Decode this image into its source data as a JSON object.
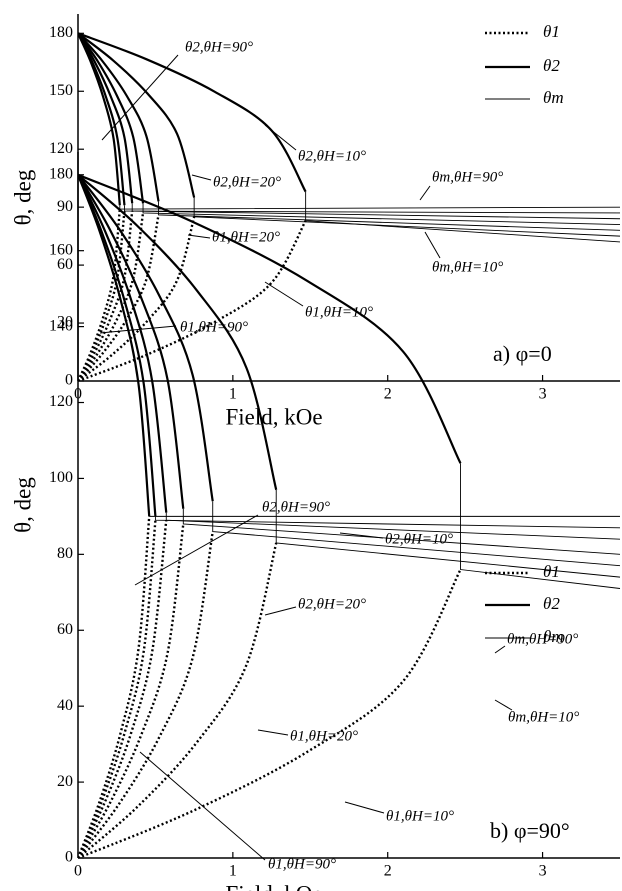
{
  "chart_data": [
    {
      "type": "line",
      "panel_label": "a) φ=0",
      "xlabel": "Field, kOe",
      "ylabel": "θ, deg",
      "xlim": [
        0,
        3.5
      ],
      "xticks": [
        0,
        1,
        2,
        3
      ],
      "ylim": [
        0,
        190
      ],
      "yticks": [
        0,
        30,
        60,
        90,
        120,
        150,
        180
      ],
      "legend": "upper right",
      "series": [
        {
          "name": "θ1",
          "color": "#000000",
          "style": "dotted",
          "curves": [
            {
              "x": [
                0,
                0.441,
                0.882,
                1.25,
                1.47
              ],
              "values": [
                0,
                13.5,
                30.5,
                50.9,
                83
              ]
            },
            {
              "x": [
                0,
                0.225,
                0.45,
                0.64,
                0.75
              ],
              "values": [
                0,
                13.9,
                31.3,
                52.1,
                85
              ]
            },
            {
              "x": [
                0,
                0.156,
                0.312,
                0.442,
                0.52
              ],
              "values": [
                0,
                14,
                31.6,
                52.7,
                86
              ]
            },
            {
              "x": [
                0,
                0.126,
                0.252,
                0.357,
                0.42
              ],
              "values": [
                0,
                14.2,
                32,
                53.3,
                87
              ]
            },
            {
              "x": [
                0,
                0.105,
                0.21,
                0.3,
                0.35
              ],
              "values": [
                0,
                14.3,
                32.4,
                53.9,
                88
              ]
            },
            {
              "x": [
                0,
                0.09,
                0.18,
                0.255,
                0.3
              ],
              "values": [
                0,
                14.3,
                32.4,
                53.9,
                88
              ]
            },
            {
              "x": [
                0,
                0.081,
                0.162,
                0.23,
                0.27
              ],
              "values": [
                0,
                14.5,
                32.8,
                54.6,
                89
              ]
            }
          ]
        },
        {
          "name": "θ2",
          "color": "#000000",
          "style": "thick",
          "curves": [
            {
              "x": [
                0,
                0.441,
                0.882,
                1.25,
                1.47
              ],
              "values": [
                180,
                166.6,
                149.8,
                129.7,
                98
              ]
            },
            {
              "x": [
                0,
                0.225,
                0.45,
                0.64,
                0.75
              ],
              "values": [
                180,
                166.1,
                148.7,
                127.9,
                95
              ]
            },
            {
              "x": [
                0,
                0.156,
                0.312,
                0.442,
                0.52
              ],
              "values": [
                180,
                165.8,
                148,
                126.7,
                93
              ]
            },
            {
              "x": [
                0,
                0.126,
                0.252,
                0.357,
                0.42
              ],
              "values": [
                180,
                165.7,
                147.6,
                126.1,
                92
              ]
            },
            {
              "x": [
                0,
                0.105,
                0.21,
                0.3,
                0.35
              ],
              "values": [
                180,
                165.7,
                147.6,
                126.1,
                92
              ]
            },
            {
              "x": [
                0,
                0.09,
                0.18,
                0.255,
                0.3
              ],
              "values": [
                180,
                165.5,
                147.2,
                125.4,
                91
              ]
            },
            {
              "x": [
                0,
                0.081,
                0.162,
                0.23,
                0.27
              ],
              "values": [
                180,
                165.5,
                147.2,
                125.4,
                91
              ]
            }
          ]
        },
        {
          "name": "θm",
          "color": "#000000",
          "style": "thin",
          "curves": [
            {
              "x": [
                1.47,
                1.47,
                3.5
              ],
              "values": [
                98,
                83,
                72
              ]
            },
            {
              "x": [
                0.75,
                0.75,
                3.5
              ],
              "values": [
                95,
                85,
                75
              ]
            },
            {
              "x": [
                0.52,
                0.52,
                3.5
              ],
              "values": [
                93,
                86,
                78
              ]
            },
            {
              "x": [
                0.42,
                0.42,
                3.5
              ],
              "values": [
                92,
                87,
                81
              ]
            },
            {
              "x": [
                0.35,
                0.35,
                3.5
              ],
              "values": [
                92,
                88,
                84
              ]
            },
            {
              "x": [
                0.3,
                0.3,
                3.5
              ],
              "values": [
                91,
                88,
                87
              ]
            },
            {
              "x": [
                0.27,
                0.27,
                3.5
              ],
              "values": [
                91,
                89,
                90
              ]
            }
          ]
        }
      ],
      "annotations": [
        "θ2,θH=90°",
        "θ2,θH=10°",
        "θ2,θH=20°",
        "θm,θH=90°",
        "θ1,θH=20°",
        "θm,θH=10°",
        "θ1,θH=10°",
        "θ1,θH=90°"
      ]
    },
    {
      "type": "line",
      "panel_label": "b) φ=90°",
      "xlabel": "Field, kOe",
      "ylabel": "θ, deg",
      "xlim": [
        0,
        3.5
      ],
      "xticks": [
        0,
        1,
        2,
        3
      ],
      "ylim": [
        0,
        186
      ],
      "yticks": [
        0,
        20,
        40,
        60,
        80,
        100,
        120,
        140,
        160,
        180
      ],
      "legend": "upper right",
      "series": [
        {
          "name": "θ1",
          "color": "#000000",
          "style": "dotted",
          "curves": [
            {
              "x": [
                0,
                0.741,
                1.482,
                2.1,
                2.47
              ],
              "values": [
                0,
                12.4,
                28,
                46.6,
                76
              ]
            },
            {
              "x": [
                0,
                0.384,
                0.768,
                1.088,
                1.28
              ],
              "values": [
                0,
                13.5,
                30.5,
                50.9,
                83
              ]
            },
            {
              "x": [
                0,
                0.261,
                0.522,
                0.74,
                0.87
              ],
              "values": [
                0,
                14,
                31.6,
                52.7,
                86
              ]
            },
            {
              "x": [
                0,
                0.204,
                0.408,
                0.578,
                0.68
              ],
              "values": [
                0,
                14.3,
                32.4,
                53.9,
                88
              ]
            },
            {
              "x": [
                0,
                0.171,
                0.342,
                0.48,
                0.57
              ],
              "values": [
                0,
                14.5,
                32.8,
                54.6,
                89
              ]
            },
            {
              "x": [
                0,
                0.15,
                0.3,
                0.425,
                0.5
              ],
              "values": [
                0,
                14.5,
                32.8,
                54.6,
                89
              ]
            },
            {
              "x": [
                0,
                0.138,
                0.276,
                0.391,
                0.46
              ],
              "values": [
                0,
                14.7,
                33.1,
                55.2,
                90
              ]
            }
          ]
        },
        {
          "name": "θ2",
          "color": "#000000",
          "style": "thick",
          "curves": [
            {
              "x": [
                0,
                0.741,
                1.482,
                2.1,
                2.47
              ],
              "values": [
                180,
                167.6,
                152,
                133.4,
                104
              ]
            },
            {
              "x": [
                0,
                0.384,
                0.768,
                1.088,
                1.28
              ],
              "values": [
                180,
                166.5,
                149.5,
                129.1,
                97
              ]
            },
            {
              "x": [
                0,
                0.261,
                0.522,
                0.74,
                0.87
              ],
              "values": [
                180,
                166,
                148.4,
                127.3,
                94
              ]
            },
            {
              "x": [
                0,
                0.204,
                0.408,
                0.578,
                0.68
              ],
              "values": [
                180,
                165.7,
                147.6,
                126.1,
                92
              ]
            },
            {
              "x": [
                0,
                0.171,
                0.342,
                0.48,
                0.57
              ],
              "values": [
                180,
                165.5,
                147.2,
                125.4,
                91
              ]
            },
            {
              "x": [
                0,
                0.15,
                0.3,
                0.425,
                0.5
              ],
              "values": [
                180,
                165.3,
                146.9,
                124.8,
                90
              ]
            },
            {
              "x": [
                0,
                0.138,
                0.276,
                0.391,
                0.46
              ],
              "values": [
                180,
                165.3,
                146.9,
                124.8,
                90
              ]
            }
          ]
        },
        {
          "name": "θm",
          "color": "#000000",
          "style": "thin",
          "curves": [
            {
              "x": [
                2.47,
                2.47,
                3.5
              ],
              "values": [
                104,
                76,
                71
              ]
            },
            {
              "x": [
                1.28,
                1.28,
                3.5
              ],
              "values": [
                97,
                83,
                74
              ]
            },
            {
              "x": [
                0.87,
                0.87,
                3.5
              ],
              "values": [
                94,
                86,
                77
              ]
            },
            {
              "x": [
                0.68,
                0.68,
                3.5
              ],
              "values": [
                92,
                88,
                80
              ]
            },
            {
              "x": [
                0.57,
                0.57,
                3.5
              ],
              "values": [
                91,
                89,
                84
              ]
            },
            {
              "x": [
                0.5,
                0.5,
                3.5
              ],
              "values": [
                90,
                89,
                87
              ]
            },
            {
              "x": [
                0.46,
                0.46,
                3.5
              ],
              "values": [
                90,
                90,
                90
              ]
            }
          ]
        }
      ],
      "annotations": [
        "θ2,θH=90°",
        "θ2,θH=10°",
        "θ2,θH=20°",
        "θm,θH=90°",
        "θ1,θH=20°",
        "θm,θH=10°",
        "θ1,θH=10°",
        "θ1,θH=90°"
      ]
    }
  ]
}
